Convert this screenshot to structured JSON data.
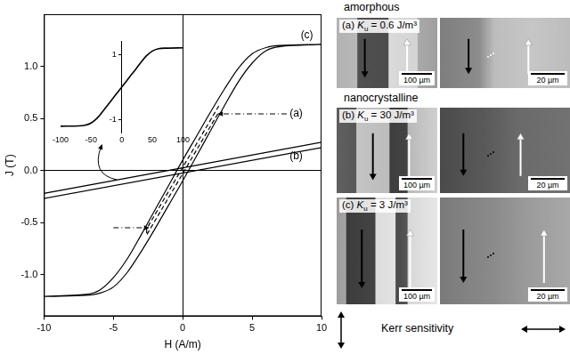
{
  "chart_data": [
    {
      "type": "line",
      "x_label": "H (A/m)",
      "y_label": "J (T)",
      "xlim": [
        -10,
        10
      ],
      "xticks": [
        -10,
        -5,
        0,
        5,
        10
      ],
      "ylim": [
        -1.4,
        1.5
      ],
      "yticks": [
        {
          "value": -1,
          "label": "-1.0"
        },
        {
          "value": -0.5,
          "label": "-0.5"
        },
        {
          "value": 0,
          "label": "0.0"
        },
        {
          "value": 0.5,
          "label": "0.5"
        },
        {
          "value": 1,
          "label": "1.0"
        }
      ],
      "grid": false,
      "series": [
        {
          "name": "(a)",
          "color": "#000000",
          "line_style": "dashed",
          "x": [
            2.6,
            -2.6,
            -2.6,
            2.6
          ],
          "values": [
            0.62,
            -0.56,
            -0.62,
            0.56
          ]
        },
        {
          "name": "(b)",
          "color": "#000000",
          "line_style": "solid",
          "x": [
            10,
            -10,
            -10,
            10
          ],
          "values": [
            0.27,
            -0.22,
            -0.27,
            0.22
          ]
        },
        {
          "name": "(c)",
          "color": "#000000",
          "line_style": "solid",
          "x": [
            10,
            7,
            6,
            5,
            4,
            3,
            2,
            1,
            0,
            -1,
            -2,
            -3,
            -4,
            -5,
            -6,
            -7,
            -10,
            -7,
            -6,
            -5,
            -4,
            -3,
            -2,
            -1,
            0,
            1,
            2,
            3,
            4,
            5,
            6,
            7,
            10
          ],
          "values": [
            1.21,
            1.2,
            1.18,
            1.12,
            0.98,
            0.78,
            0.56,
            0.33,
            0.1,
            -0.14,
            -0.38,
            -0.62,
            -0.85,
            -1.03,
            -1.15,
            -1.19,
            -1.21,
            -1.2,
            -1.18,
            -1.12,
            -0.98,
            -0.78,
            -0.56,
            -0.33,
            -0.1,
            0.14,
            0.38,
            0.62,
            0.85,
            1.03,
            1.15,
            1.19,
            1.21
          ]
        }
      ]
    },
    {
      "type": "line",
      "xlim": [
        -100,
        100
      ],
      "xticks": [
        -100,
        -50,
        0,
        50,
        100
      ],
      "ylim": [
        -1.4,
        1.4
      ],
      "yticks": [
        -1,
        1
      ],
      "grid": false,
      "series": [
        {
          "color": "#000000",
          "line_style": "solid",
          "x": [
            -100,
            -70,
            -60,
            -50,
            -40,
            -30,
            -20,
            -10,
            0,
            10,
            20,
            30,
            40,
            50,
            60,
            70,
            100
          ],
          "values": [
            -1.2,
            -1.19,
            -1.17,
            -1.1,
            -0.95,
            -0.72,
            -0.48,
            -0.24,
            0,
            0.24,
            0.48,
            0.72,
            0.95,
            1.1,
            1.17,
            1.19,
            1.2
          ]
        }
      ]
    }
  ],
  "images": {
    "groups": [
      {
        "title": "amorphous",
        "panels": [
          {
            "label": "(a)",
            "symbol": "K",
            "subscript": "u",
            "relation": "=",
            "value": 0.6,
            "unit": "J/m³",
            "scale_bars": [
              "100 µm",
              "20 µm"
            ]
          }
        ]
      },
      {
        "title": "nanocrystalline",
        "panels": [
          {
            "label": "(b)",
            "symbol": "K",
            "subscript": "u",
            "relation": "=",
            "value": 30,
            "unit": "J/m³",
            "scale_bars": [
              "100 µm",
              "20 µm"
            ]
          },
          {
            "label": "(c)",
            "symbol": "K",
            "subscript": "u",
            "relation": "=",
            "value": 3,
            "unit": "J/m³",
            "scale_bars": [
              "100 µm",
              "20 µm"
            ]
          }
        ]
      }
    ],
    "footer": "Kerr sensitivity"
  }
}
